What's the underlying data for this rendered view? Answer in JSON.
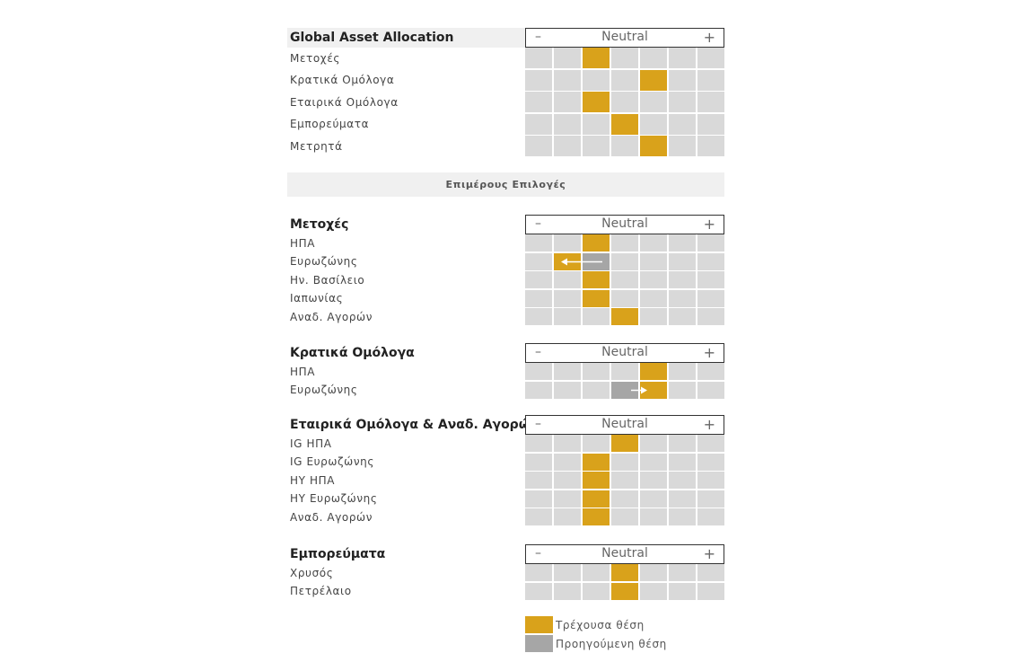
{
  "colors": {
    "current": "#d9a21b",
    "previous": "#a6a6a6",
    "empty": "#d9d9d9"
  },
  "scale": {
    "minus": "–",
    "neutral": "Neutral",
    "plus": "+"
  },
  "banner": "Επιμέρους Επιλογές",
  "legend": {
    "current": "Τρέχουσα θέση",
    "previous": "Προηγούμενη θέση"
  },
  "chart_data": {
    "type": "table",
    "scale_positions": 7,
    "position_note": "1 = most underweight (–), 4 = Neutral, 7 = most overweight (+)",
    "sections": [
      {
        "title": "Global Asset Allocation",
        "rows": [
          {
            "label": "Μετοχές",
            "current": 3
          },
          {
            "label": "Κρατικά Ομόλογα",
            "current": 5
          },
          {
            "label": "Εταιρικά Ομόλογα",
            "current": 3
          },
          {
            "label": "Εμπορεύματα",
            "current": 4
          },
          {
            "label": "Μετρητά",
            "current": 5
          }
        ]
      },
      {
        "title": "Μετοχές",
        "rows": [
          {
            "label": "ΗΠΑ",
            "current": 3
          },
          {
            "label": "Ευρωζώνης",
            "current": 2,
            "previous": 3
          },
          {
            "label": "Ην. Βασίλειο",
            "current": 3
          },
          {
            "label": "Ιαπωνίας",
            "current": 3
          },
          {
            "label": "Αναδ. Αγορών",
            "current": 4
          }
        ]
      },
      {
        "title": "Κρατικά Ομόλογα",
        "rows": [
          {
            "label": "ΗΠΑ",
            "current": 5
          },
          {
            "label": "Ευρωζώνης",
            "current": 5,
            "previous": 4
          }
        ]
      },
      {
        "title": "Εταιρικά Ομόλογα & Αναδ. Αγορών",
        "rows": [
          {
            "label": "IG ΗΠΑ",
            "current": 4
          },
          {
            "label": "IG Ευρωζώνης",
            "current": 3
          },
          {
            "label": "HY ΗΠΑ",
            "current": 3
          },
          {
            "label": "HY Ευρωζώνης",
            "current": 3
          },
          {
            "label": "Αναδ. Αγορών",
            "current": 3
          }
        ]
      },
      {
        "title": "Εμπορεύματα",
        "rows": [
          {
            "label": "Χρυσός",
            "current": 4
          },
          {
            "label": "Πετρέλαιο",
            "current": 4
          }
        ]
      }
    ]
  }
}
